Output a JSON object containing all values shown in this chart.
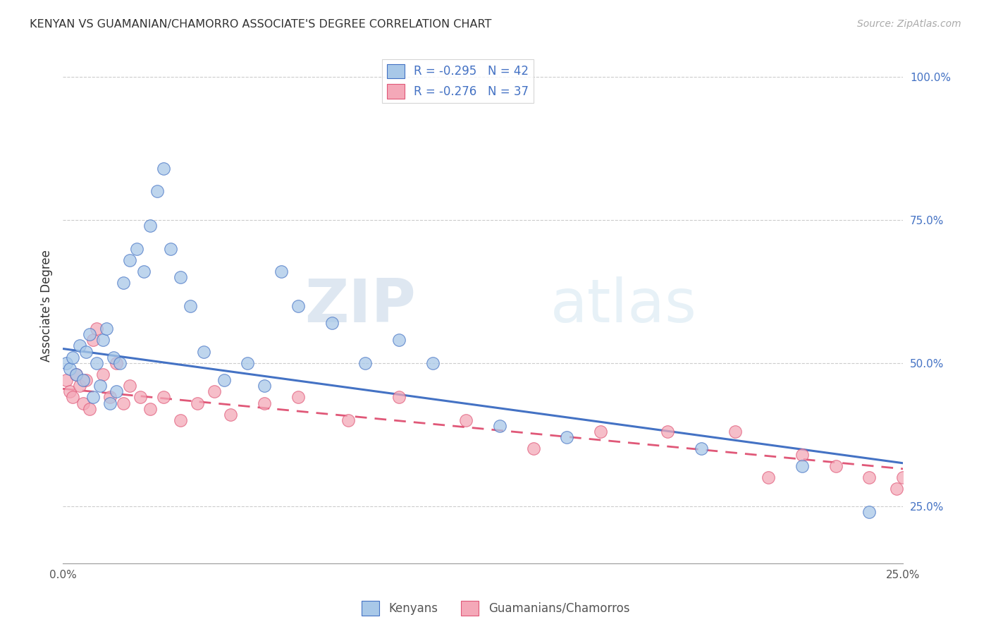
{
  "title": "KENYAN VS GUAMANIAN/CHAMORRO ASSOCIATE'S DEGREE CORRELATION CHART",
  "source": "Source: ZipAtlas.com",
  "xlabel": "",
  "ylabel": "Associate's Degree",
  "legend_label1": "Kenyans",
  "legend_label2": "Guamanians/Chamorros",
  "r1": -0.295,
  "n1": 42,
  "r2": -0.276,
  "n2": 37,
  "color1": "#a8c8e8",
  "color2": "#f4a8b8",
  "line_color1": "#4472c4",
  "line_color2": "#e05878",
  "xlim": [
    0.0,
    0.25
  ],
  "ylim": [
    0.15,
    1.05
  ],
  "xticks": [
    0.0,
    0.25
  ],
  "yticks": [
    0.25,
    0.5,
    0.75,
    1.0
  ],
  "xticklabels": [
    "0.0%",
    "25.0%"
  ],
  "yticklabels_right": [
    "25.0%",
    "50.0%",
    "75.0%",
    "100.0%"
  ],
  "watermark_zip": "ZIP",
  "watermark_atlas": "atlas",
  "kenyan_x": [
    0.001,
    0.002,
    0.003,
    0.004,
    0.005,
    0.006,
    0.007,
    0.008,
    0.009,
    0.01,
    0.011,
    0.012,
    0.013,
    0.014,
    0.015,
    0.016,
    0.017,
    0.018,
    0.02,
    0.022,
    0.024,
    0.026,
    0.028,
    0.03,
    0.032,
    0.035,
    0.038,
    0.042,
    0.048,
    0.055,
    0.06,
    0.065,
    0.07,
    0.08,
    0.09,
    0.1,
    0.11,
    0.13,
    0.15,
    0.19,
    0.22,
    0.24
  ],
  "kenyan_y": [
    0.5,
    0.49,
    0.51,
    0.48,
    0.53,
    0.47,
    0.52,
    0.55,
    0.44,
    0.5,
    0.46,
    0.54,
    0.56,
    0.43,
    0.51,
    0.45,
    0.5,
    0.64,
    0.68,
    0.7,
    0.66,
    0.74,
    0.8,
    0.84,
    0.7,
    0.65,
    0.6,
    0.52,
    0.47,
    0.5,
    0.46,
    0.66,
    0.6,
    0.57,
    0.5,
    0.54,
    0.5,
    0.39,
    0.37,
    0.35,
    0.32,
    0.24
  ],
  "chamorro_x": [
    0.001,
    0.002,
    0.003,
    0.004,
    0.005,
    0.006,
    0.007,
    0.008,
    0.009,
    0.01,
    0.012,
    0.014,
    0.016,
    0.018,
    0.02,
    0.023,
    0.026,
    0.03,
    0.035,
    0.04,
    0.045,
    0.05,
    0.06,
    0.07,
    0.085,
    0.1,
    0.12,
    0.14,
    0.16,
    0.18,
    0.2,
    0.21,
    0.22,
    0.23,
    0.24,
    0.248,
    0.25
  ],
  "chamorro_y": [
    0.47,
    0.45,
    0.44,
    0.48,
    0.46,
    0.43,
    0.47,
    0.42,
    0.54,
    0.56,
    0.48,
    0.44,
    0.5,
    0.43,
    0.46,
    0.44,
    0.42,
    0.44,
    0.4,
    0.43,
    0.45,
    0.41,
    0.43,
    0.44,
    0.4,
    0.44,
    0.4,
    0.35,
    0.38,
    0.38,
    0.38,
    0.3,
    0.34,
    0.32,
    0.3,
    0.28,
    0.3
  ]
}
